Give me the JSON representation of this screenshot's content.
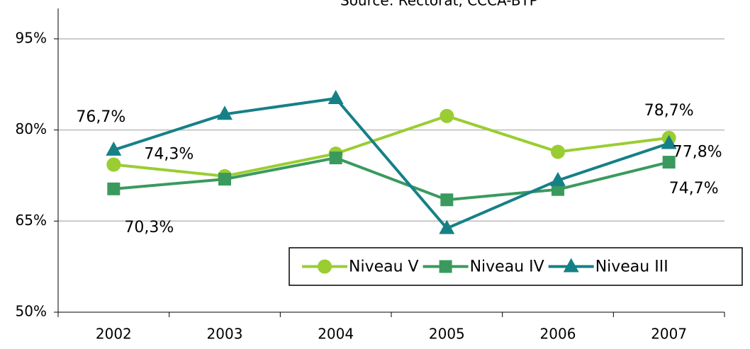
{
  "chart_data": {
    "type": "line",
    "annotation": "Source: Rectorat, CCCA-BTP",
    "categories": [
      "2002",
      "2003",
      "2004",
      "2005",
      "2006",
      "2007"
    ],
    "series": [
      {
        "name": "Niveau V",
        "color": "#9acd32",
        "marker": "circle",
        "values": [
          74.3,
          72.4,
          76.1,
          82.3,
          76.4,
          78.7
        ],
        "value_labels": [
          "74,3%",
          null,
          null,
          null,
          null,
          "78,7%"
        ]
      },
      {
        "name": "Niveau IV",
        "color": "#3a9a5e",
        "marker": "square",
        "values": [
          70.3,
          71.9,
          75.4,
          68.5,
          70.2,
          74.7
        ],
        "value_labels": [
          "70,3%",
          null,
          null,
          null,
          null,
          "74,7%"
        ]
      },
      {
        "name": "Niveau III",
        "color": "#168087",
        "marker": "triangle",
        "values": [
          76.7,
          82.6,
          85.2,
          63.8,
          71.7,
          77.8
        ],
        "value_labels": [
          "76,7%",
          null,
          null,
          null,
          null,
          "77,8%"
        ]
      }
    ],
    "ylim": [
      50,
      100
    ],
    "yticks": [
      {
        "value": 50,
        "label": "50%"
      },
      {
        "value": 65,
        "label": "65%"
      },
      {
        "value": 80,
        "label": "80%"
      },
      {
        "value": 95,
        "label": "95%"
      }
    ],
    "grid": true,
    "legend": "bottom-right"
  }
}
